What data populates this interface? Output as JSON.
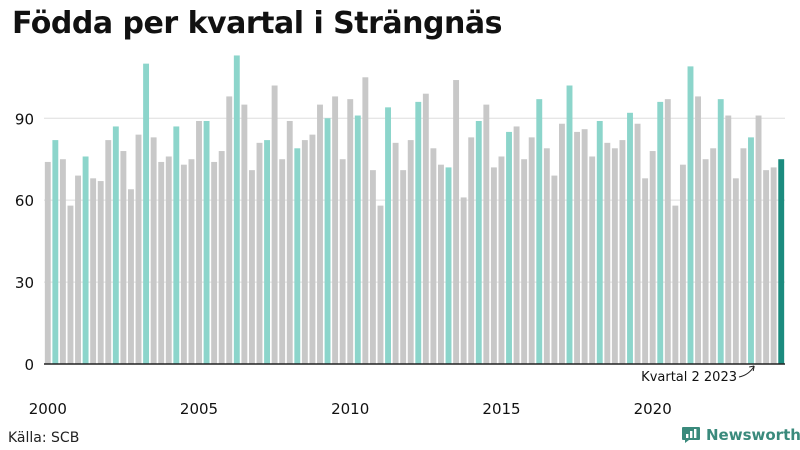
{
  "title": "Födda per kvartal i Strängnäs",
  "source": "Källa: SCB",
  "brand": {
    "name": "Newsworthy",
    "logo_icon": "newsworthy-chart-icon"
  },
  "colors": {
    "grey": "#c8c8c8",
    "q2": "#8cd5cb",
    "latest": "#1b8b7e",
    "grid": "#dddddd",
    "axis": "#222222",
    "text": "#111111"
  },
  "chart_data": {
    "type": "bar",
    "title": "Födda per kvartal i Strängnäs",
    "start_year": 2000,
    "x_ticks": [
      "2000",
      "2005",
      "2010",
      "2015",
      "2020"
    ],
    "y_ticks": [
      0,
      30,
      60,
      90
    ],
    "ylim": [
      0,
      115
    ],
    "grid": true,
    "highlight_rule": "Quarter 2 of each year highlighted",
    "annotation": "Kvartal 2 2023",
    "values": [
      74,
      82,
      75,
      58,
      69,
      76,
      68,
      67,
      82,
      87,
      78,
      64,
      84,
      110,
      83,
      74,
      76,
      87,
      73,
      75,
      89,
      89,
      74,
      78,
      98,
      113,
      95,
      71,
      81,
      82,
      102,
      75,
      89,
      79,
      82,
      84,
      95,
      90,
      98,
      75,
      97,
      91,
      105,
      71,
      58,
      94,
      81,
      71,
      82,
      96,
      99,
      79,
      73,
      72,
      104,
      61,
      83,
      89,
      95,
      72,
      76,
      85,
      87,
      75,
      83,
      97,
      79,
      69,
      88,
      102,
      85,
      86,
      76,
      89,
      81,
      79,
      82,
      92,
      88,
      68,
      78,
      96,
      97,
      58,
      73,
      109,
      98,
      75,
      79,
      97,
      91,
      68,
      79,
      83,
      91,
      71,
      72,
      75
    ]
  }
}
